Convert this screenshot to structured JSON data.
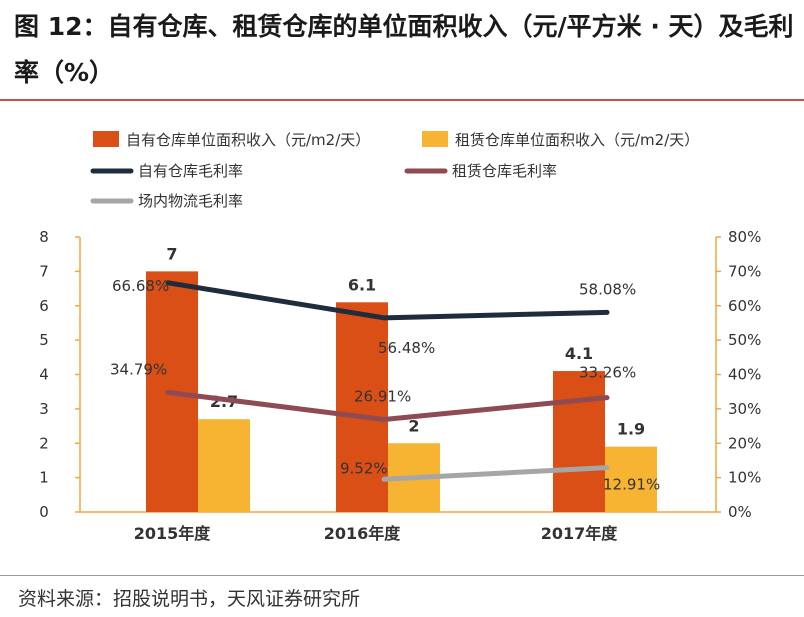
{
  "title": "图 12：自有仓库、租赁仓库的单位面积收入（元/平方米 · 天）及毛利率（%）",
  "source": "资料来源：招股说明书，天风证券研究所",
  "colors": {
    "own_bar": "#d94f16",
    "rent_bar": "#f7b433",
    "own_margin": "#1f2c3c",
    "rent_margin": "#8e4b54",
    "onsite_margin": "#a6a6a6",
    "axis": "#f2a93b"
  },
  "chart_data": {
    "type": "bar+line",
    "categories": [
      "2015年度",
      "2016年度",
      "2017年度"
    ],
    "left_axis": {
      "min": 0,
      "max": 8,
      "ticks": [
        "0",
        "1",
        "2",
        "3",
        "4",
        "5",
        "6",
        "7",
        "8"
      ]
    },
    "right_axis": {
      "min": 0,
      "max": 80,
      "ticks": [
        "0%",
        "10%",
        "20%",
        "30%",
        "40%",
        "50%",
        "60%",
        "70%",
        "80%"
      ]
    },
    "bars": [
      {
        "name": "自有仓库单位面积收入（元/m2/天）",
        "values": [
          7,
          6.1,
          4.1
        ],
        "labels": [
          "7",
          "6.1",
          "4.1"
        ]
      },
      {
        "name": "租赁仓库单位面积收入（元/m2/天）",
        "values": [
          2.7,
          2,
          1.9
        ],
        "labels": [
          "2.7",
          "2",
          "1.9"
        ]
      }
    ],
    "lines": [
      {
        "name": "自有仓库毛利率",
        "values": [
          66.68,
          56.48,
          58.08
        ],
        "labels": [
          "66.68%",
          "56.48%",
          "58.08%"
        ]
      },
      {
        "name": "租赁仓库毛利率",
        "values": [
          34.79,
          26.91,
          33.26
        ],
        "labels": [
          "34.79%",
          "26.91%",
          "33.26%"
        ]
      },
      {
        "name": "场内物流毛利率",
        "values": [
          null,
          9.52,
          12.91
        ],
        "labels": [
          "",
          "9.52%",
          "12.91%"
        ]
      }
    ]
  }
}
